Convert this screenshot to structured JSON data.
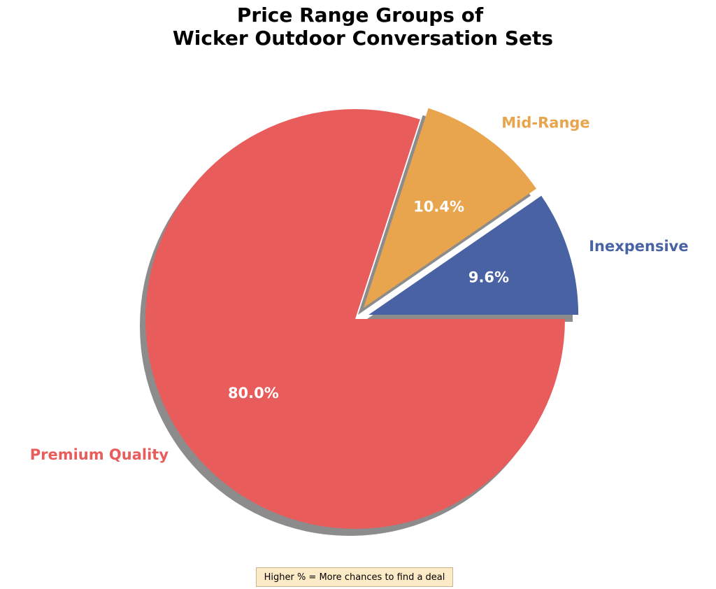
{
  "chart_data": {
    "type": "pie",
    "title_lines": [
      "Price Range Groups of",
      "Wicker Outdoor Conversation Sets"
    ],
    "slices": [
      {
        "label": "Inexpensive",
        "value": 9.6,
        "pct_text": "9.6%",
        "color": "#4862a3",
        "exploded": true
      },
      {
        "label": "Mid-Range",
        "value": 10.4,
        "pct_text": "10.4%",
        "color": "#e8a54d",
        "exploded": true
      },
      {
        "label": "Premium Quality",
        "value": 80.0,
        "pct_text": "80.0%",
        "color": "#e85c5c",
        "exploded": false
      }
    ],
    "start_angle_deg": 0,
    "direction": "counterclockwise",
    "shadow": true,
    "legend": "none"
  },
  "note": {
    "text": "Higher % = More chances to find a deal"
  }
}
